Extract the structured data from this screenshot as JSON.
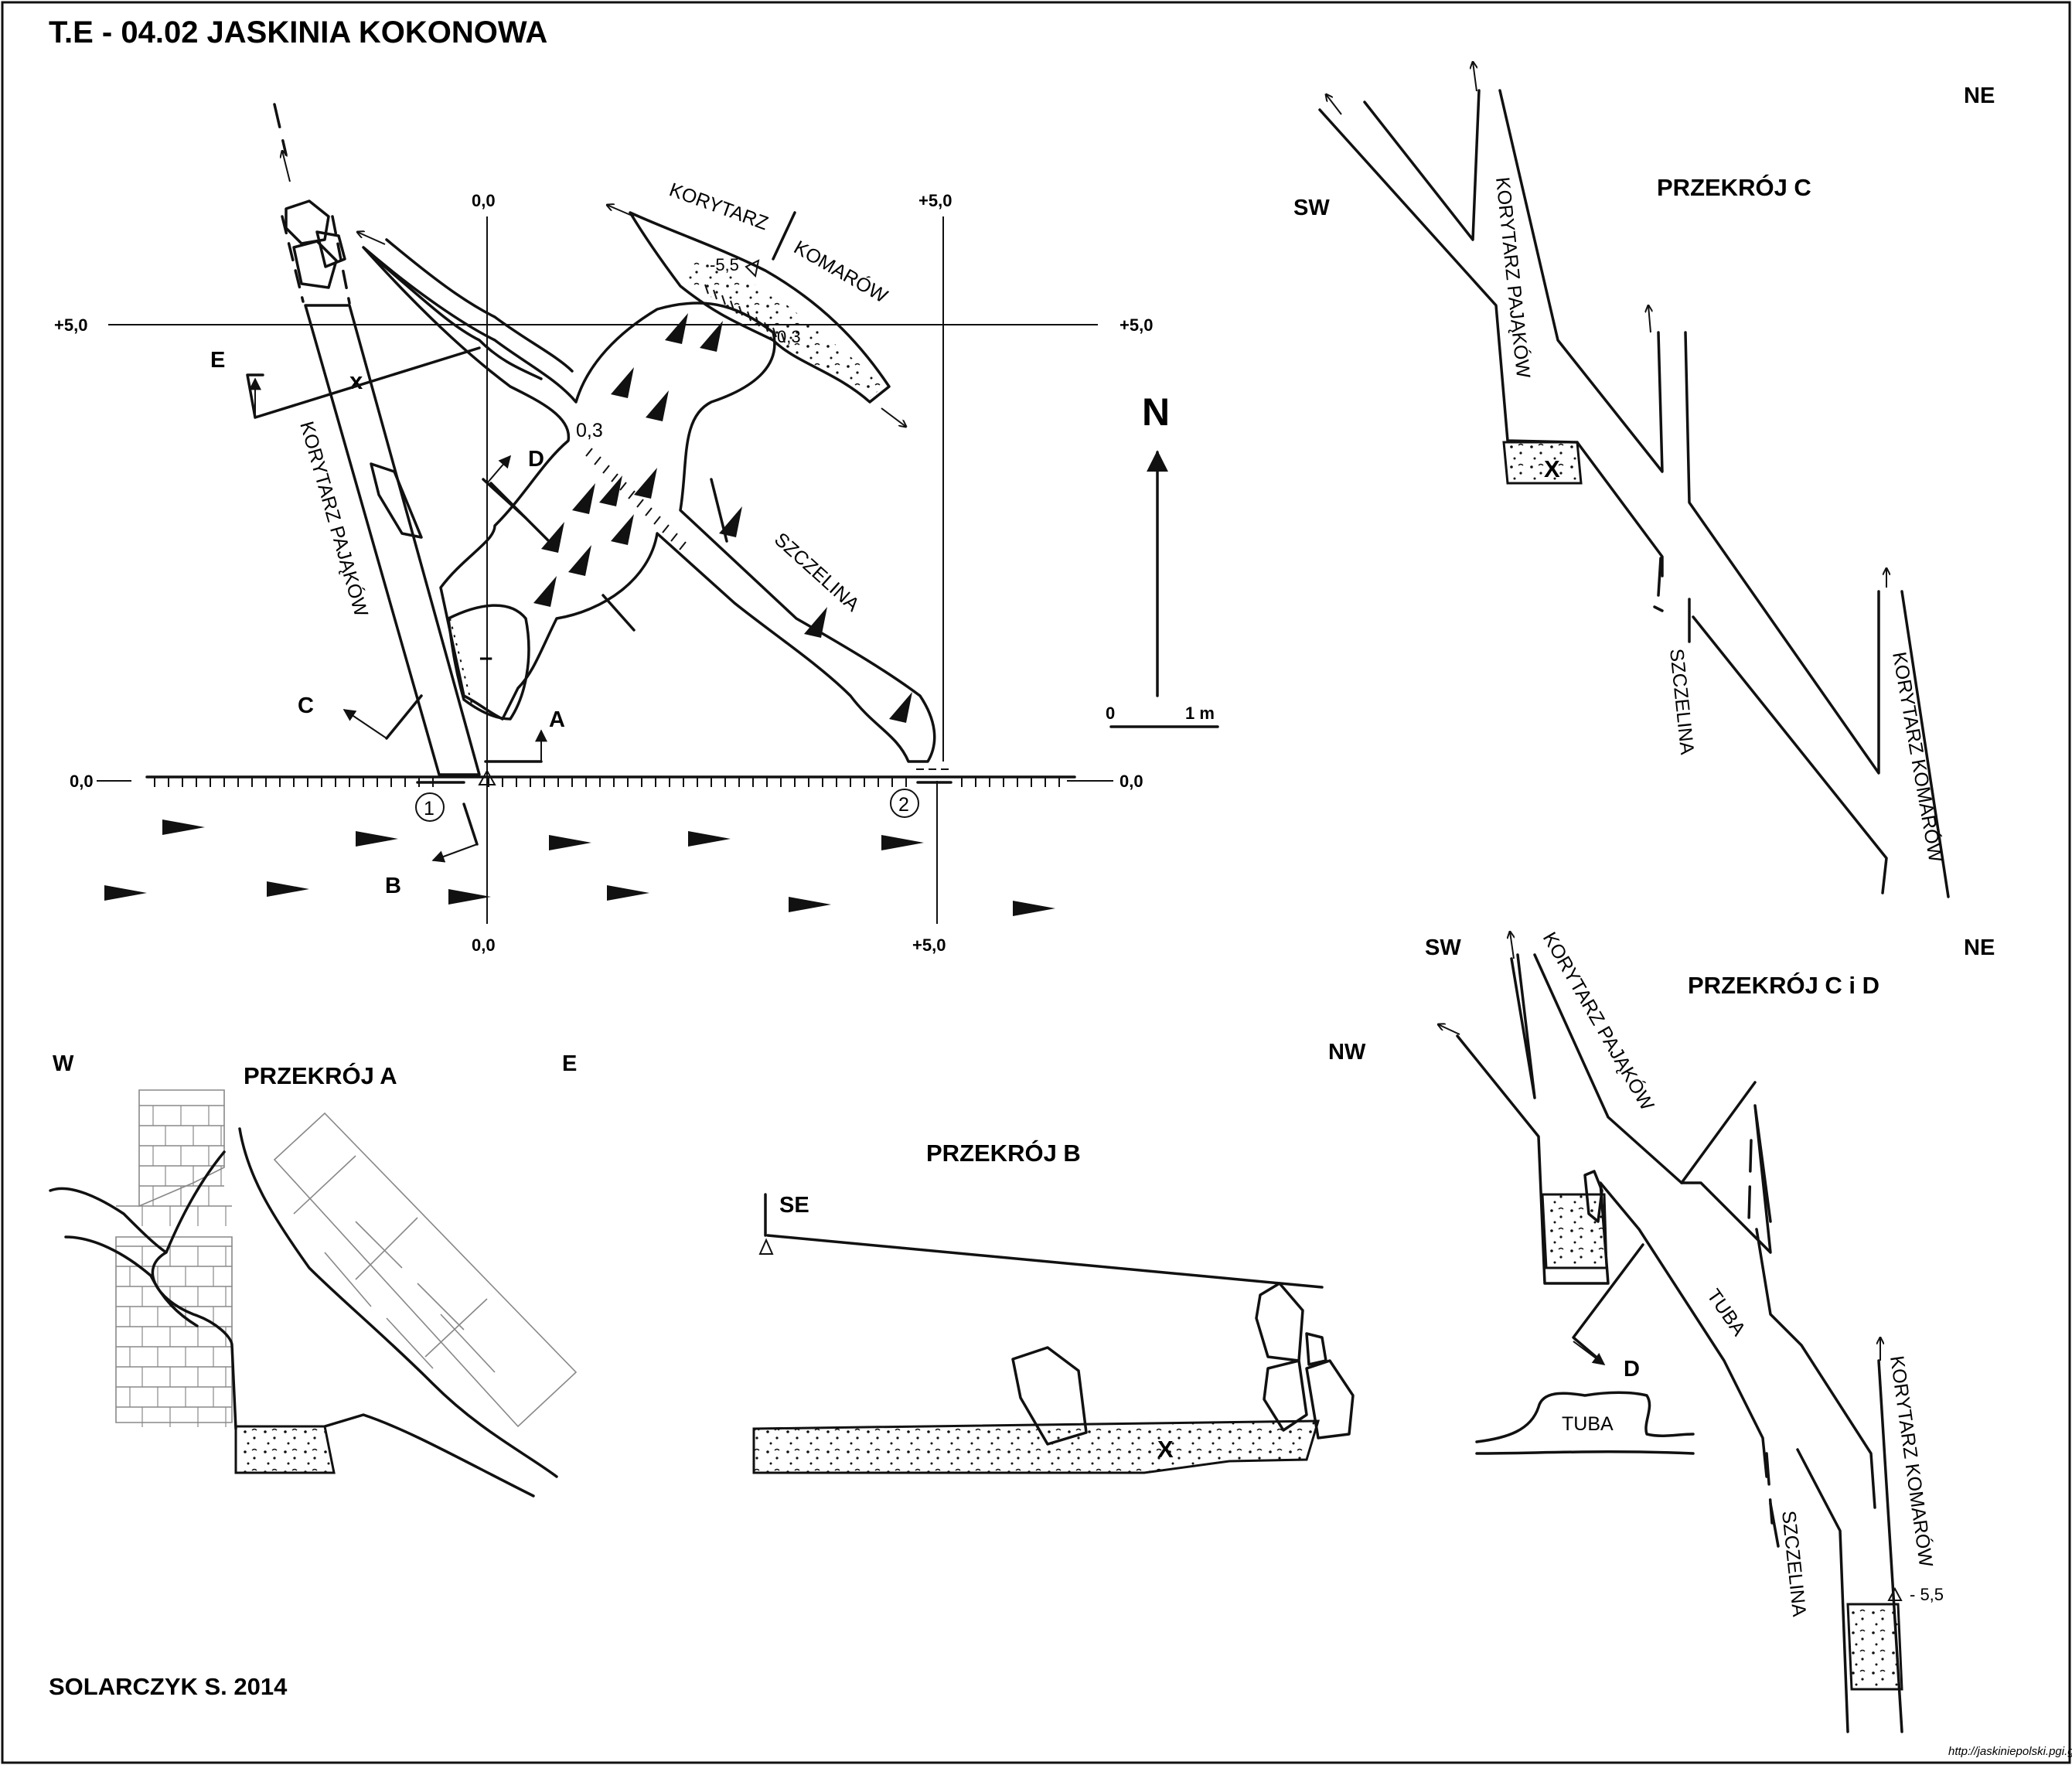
{
  "title": "T.E - 04.02  JASKINIA KOKONOWA",
  "author": "SOLARCZYK S. 2014",
  "url": "http://jaskiniepolski.pgi.gov.pl",
  "plan": {
    "north": "N",
    "scale_zero": "0",
    "scale_one": "1 m",
    "grid_labels": {
      "v_top_left": "0,0",
      "v_top_right": "+5,0",
      "h_left_top": "+5,0",
      "h_right_top": "+5,0",
      "h_left_bottom": "0,0",
      "h_right_bottom": "0,0",
      "v_bottom_left": "0,0",
      "v_bottom_right": "+5,0"
    },
    "labels": {
      "korytarz": "KORYTARZ",
      "komarow": "KOMARÓW",
      "korytarz_pajakow": "KORYTARZ PAJĄKÓW",
      "szczelina": "SZCZELINA",
      "depth_55": "-5,5",
      "depth_03a": "0,3",
      "depth_03b": "0,3",
      "x": "x",
      "minus": "–",
      "entrance_1": "1",
      "entrance_2": "2"
    },
    "section_marks": {
      "a": "A",
      "b": "B",
      "c": "C",
      "d": "D",
      "e": "E"
    }
  },
  "sections": {
    "c": {
      "title": "PRZEKRÓJ  C",
      "sw": "SW",
      "ne": "NE",
      "korytarz_pajakow": "KORYTARZ PAJĄKÓW",
      "szczelina": "SZCZELINA",
      "korytarz_komarow": "KORYTARZ KOMARÓW",
      "x": "X"
    },
    "cd": {
      "title": "PRZEKRÓJ  C i D",
      "sw": "SW",
      "ne": "NE",
      "nw": "NW",
      "korytarz_pajakow": "KORYTARZ PAJĄKÓW",
      "tuba": "TUBA",
      "tuba_d": "TUBA",
      "d": "D",
      "szczelina": "SZCZELINA",
      "korytarz_komarow": "KORYTARZ KOMARÓW",
      "depth": "- 5,5"
    },
    "a": {
      "title": "PRZEKRÓJ  A",
      "w": "W",
      "e": "E"
    },
    "b": {
      "title": "PRZEKRÓJ  B",
      "se": "SE",
      "x": "X"
    }
  },
  "colors": {
    "ink": "#111111",
    "paper": "#ffffff",
    "brick": "#888888"
  }
}
